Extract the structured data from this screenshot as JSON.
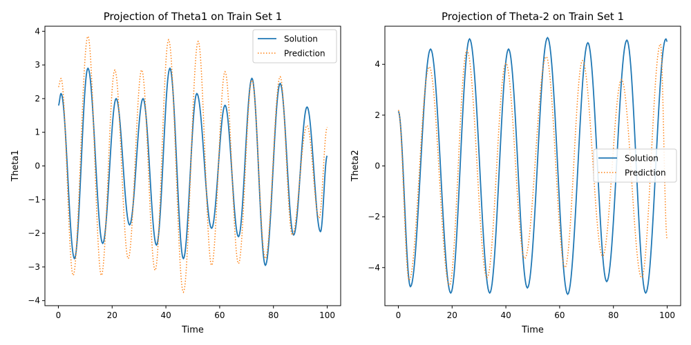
{
  "chart_data": [
    {
      "type": "line",
      "title": "Projection of Theta1 on Train Set 1",
      "xlabel": "Time",
      "ylabel": "Theta1",
      "xlim": [
        -5,
        105
      ],
      "ylim": [
        -4.15,
        4.15
      ],
      "xticks": [
        0,
        20,
        40,
        60,
        80,
        100
      ],
      "yticks": [
        -4,
        -3,
        -2,
        -1,
        0,
        1,
        2,
        3,
        4
      ],
      "xtick_labels": [
        "0",
        "20",
        "40",
        "60",
        "80",
        "100"
      ],
      "ytick_labels": [
        "−4",
        "−3",
        "−2",
        "−1",
        "0",
        "1",
        "2",
        "3",
        "4"
      ],
      "legend_position": "top-right",
      "grid": false,
      "series": [
        {
          "name": "Solution",
          "style": "solid",
          "color": "#1f77b4",
          "x": [
            0,
            1,
            6,
            11,
            16.5,
            21.5,
            26.5,
            31.5,
            36.5,
            41.5,
            46.5,
            51.5,
            57,
            62,
            67,
            72,
            77,
            82.5,
            87.5,
            92.5,
            97.5,
            100
          ],
          "y": [
            1.8,
            2.15,
            -2.75,
            2.9,
            -2.3,
            2.0,
            -1.75,
            2.0,
            -2.35,
            2.9,
            -2.75,
            2.15,
            -1.85,
            1.8,
            -2.1,
            2.6,
            -2.95,
            2.45,
            -2.05,
            1.75,
            -1.95,
            0.3
          ]
        },
        {
          "name": "Prediction",
          "style": "dotted",
          "color": "#ff7f0e",
          "x": [
            0,
            1,
            5.5,
            11,
            16,
            21,
            26,
            31,
            36,
            41,
            46.5,
            52,
            57,
            62,
            67,
            72,
            77,
            82.5,
            87,
            92.5,
            97,
            100
          ],
          "y": [
            2.35,
            2.6,
            -3.25,
            3.85,
            -3.25,
            2.85,
            -2.75,
            2.85,
            -3.1,
            3.75,
            -3.75,
            3.7,
            -2.95,
            2.8,
            -2.9,
            2.55,
            -2.75,
            2.65,
            -2.05,
            1.2,
            -1.55,
            1.15
          ]
        }
      ]
    },
    {
      "type": "line",
      "title": "Projection of Theta-2 on Train Set 1",
      "xlabel": "Time",
      "ylabel": "Theta2",
      "xlim": [
        -5,
        105
      ],
      "ylim": [
        -5.5,
        5.5
      ],
      "xticks": [
        0,
        20,
        40,
        60,
        80,
        100
      ],
      "yticks": [
        -4,
        -2,
        0,
        2,
        4
      ],
      "xtick_labels": [
        "0",
        "20",
        "40",
        "60",
        "80",
        "100"
      ],
      "ytick_labels": [
        "−4",
        "−2",
        "0",
        "2",
        "4"
      ],
      "legend_position": "center-right",
      "grid": false,
      "series": [
        {
          "name": "Solution",
          "style": "solid",
          "color": "#1f77b4",
          "x": [
            0,
            4.5,
            12,
            19.5,
            26.5,
            34,
            41,
            48,
            55.5,
            63,
            70.5,
            77.5,
            85,
            92,
            99.5,
            100
          ],
          "y": [
            2.15,
            -4.75,
            4.6,
            -5.0,
            5.0,
            -5.0,
            4.6,
            -4.8,
            5.05,
            -5.05,
            4.85,
            -4.55,
            4.95,
            -5.0,
            5.0,
            4.9
          ],
          "smooth": true
        },
        {
          "name": "Prediction",
          "style": "dotted",
          "color": "#ff7f0e",
          "x": [
            0,
            4,
            11.5,
            19,
            25.5,
            33,
            40,
            47,
            55,
            62,
            68.5,
            76,
            83,
            90.5,
            97.5,
            100
          ],
          "y": [
            2.2,
            -4.5,
            3.9,
            -4.7,
            4.55,
            -4.4,
            4.05,
            -3.65,
            4.3,
            -4.0,
            4.15,
            -3.55,
            3.4,
            -4.4,
            4.8,
            -2.9
          ],
          "smooth": true
        }
      ]
    }
  ]
}
